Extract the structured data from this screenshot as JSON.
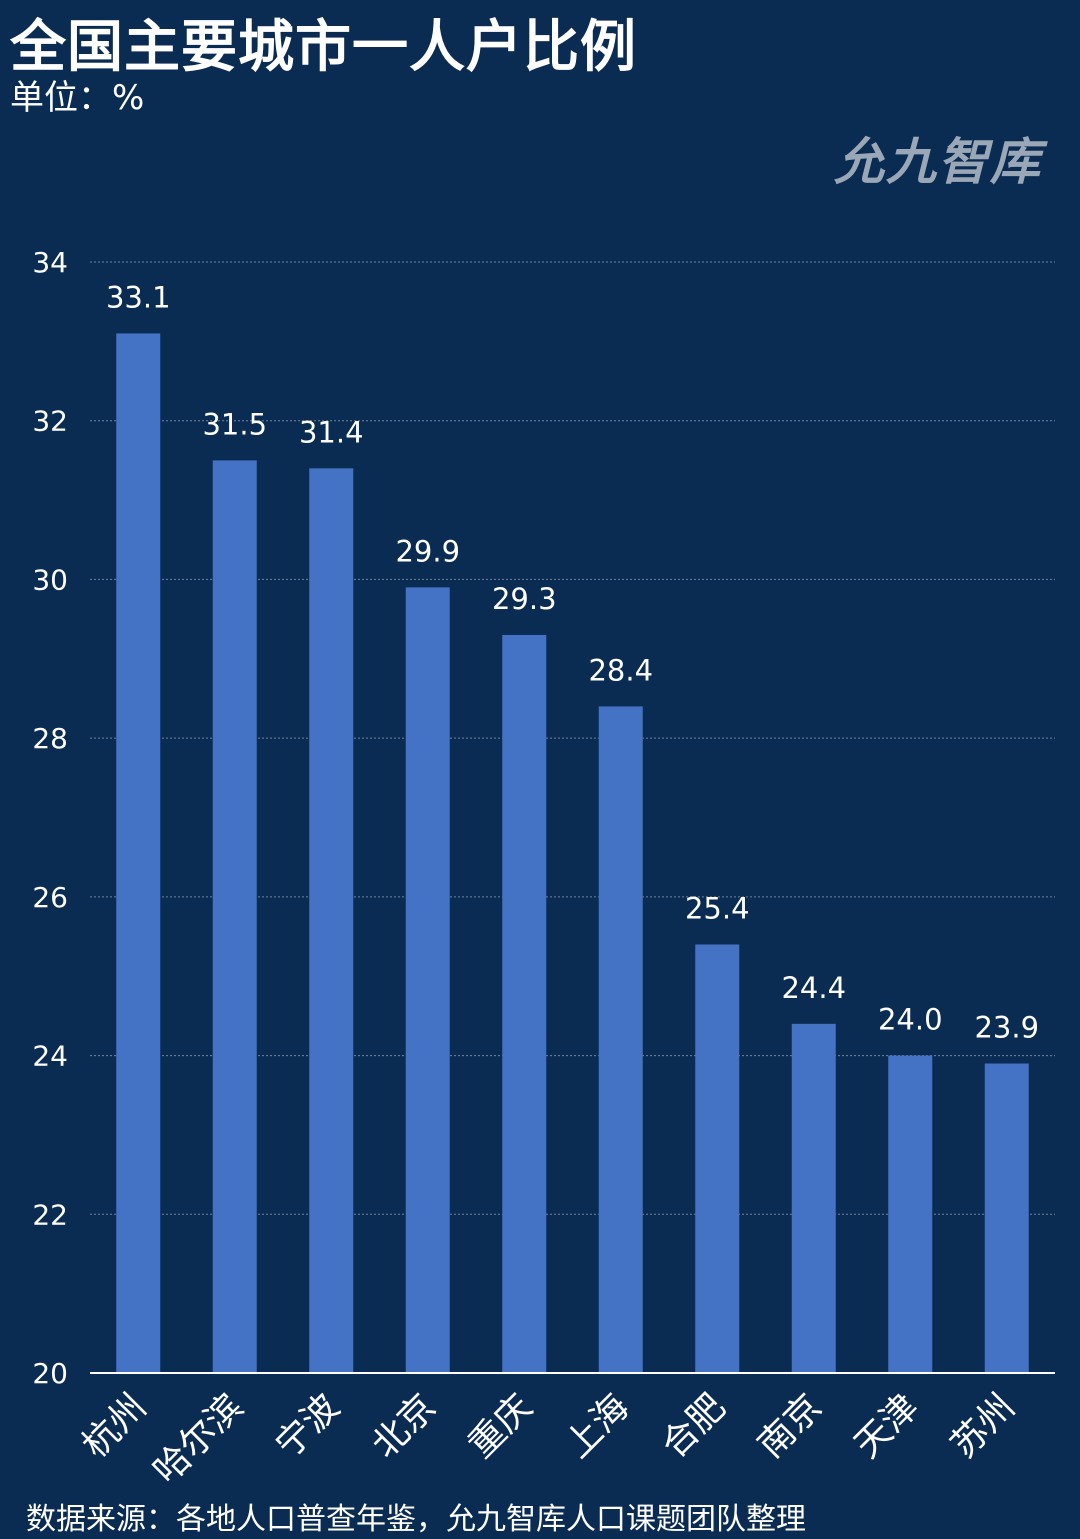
{
  "header": {
    "title": "全国主要城市一人户比例",
    "unit": "单位：%"
  },
  "watermark": "允九智库",
  "footer": {
    "source": "数据来源：各地人口普查年鉴，允九智库人口课题团队整理"
  },
  "colors": {
    "background": "#0b2c52",
    "bar": "#4472c4",
    "grid": "#6f829a",
    "axis": "#ffffff"
  },
  "chart_data": {
    "type": "bar",
    "title": "全国主要城市一人户比例",
    "ylabel": "单位：%",
    "xlabel": "",
    "categories": [
      "杭州",
      "哈尔滨",
      "宁波",
      "北京",
      "重庆",
      "上海",
      "合肥",
      "南京",
      "天津",
      "苏州"
    ],
    "values": [
      33.1,
      31.5,
      31.4,
      29.9,
      29.3,
      28.4,
      25.4,
      24.4,
      24.0,
      23.9
    ],
    "value_labels": [
      "33.1",
      "31.5",
      "31.4",
      "29.9",
      "29.3",
      "28.4",
      "25.4",
      "24.4",
      "24.0",
      "23.9"
    ],
    "ylim": [
      20,
      34
    ],
    "yticks": [
      20,
      22,
      24,
      26,
      28,
      30,
      32,
      34
    ],
    "grid": true,
    "legend": "none"
  }
}
